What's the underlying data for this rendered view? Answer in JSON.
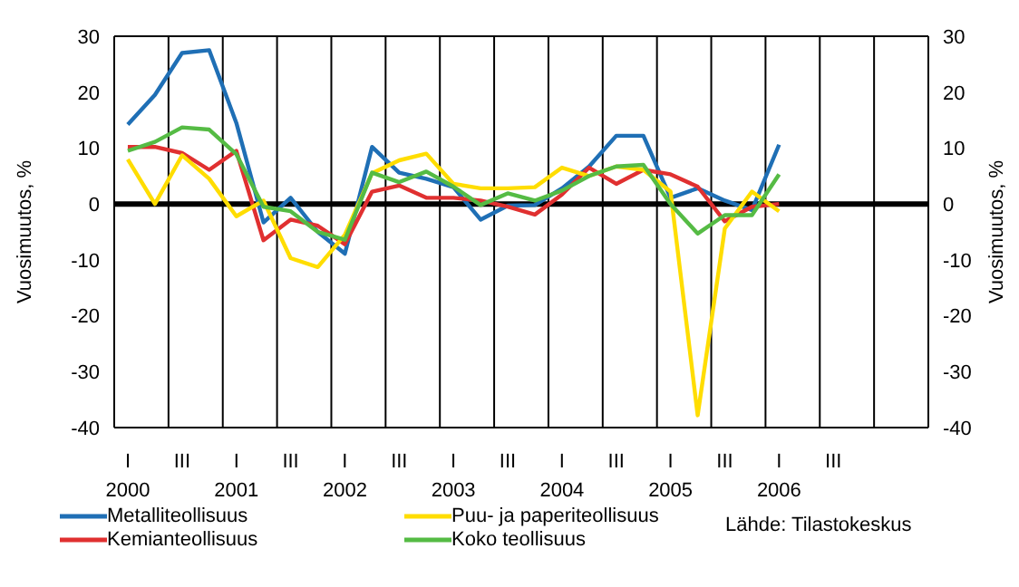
{
  "chart_data": {
    "type": "line",
    "categories": [
      "I\n2000",
      null,
      "III",
      null,
      "I\n2001",
      null,
      "III",
      null,
      "I\n2002",
      null,
      "III",
      null,
      "I\n2003",
      null,
      "III",
      null,
      "I\n2004",
      null,
      "III",
      null,
      "I\n2005",
      null,
      "III",
      null,
      "I\n2006",
      null,
      "III",
      null,
      null,
      null
    ],
    "series": [
      {
        "name": "Metalliteollisuus",
        "color": "#1f6fb5",
        "values": [
          14.2,
          19.5,
          27,
          27.5,
          14.5,
          -3.3,
          1.1,
          -5,
          -8.9,
          10.2,
          5.6,
          4.5,
          3,
          -2.8,
          -0.3,
          -0.2,
          2.8,
          6.7,
          12.2,
          12.2,
          1.1,
          2.8,
          0.6,
          -1.1,
          10.6,
          null,
          null,
          null,
          null,
          null
        ]
      },
      {
        "name": "Kemianteollisuus",
        "color": "#e03030",
        "values": [
          10.2,
          10.2,
          9.1,
          6.1,
          9.5,
          -6.5,
          -2.8,
          -3.9,
          -7.2,
          2.2,
          3.3,
          1.1,
          1.1,
          0.6,
          -0.5,
          -1.9,
          1.7,
          6.5,
          3.6,
          6.1,
          5.3,
          3.1,
          -3.1,
          -0.5,
          0,
          null,
          null,
          null,
          null,
          null
        ]
      },
      {
        "name": "Puu- ja paperiteollisuus",
        "color": "#ffdd00",
        "values": [
          8,
          0,
          8.7,
          4.5,
          -2.2,
          0.6,
          -9.7,
          -11.3,
          -5.5,
          5.5,
          7.8,
          9,
          3.6,
          2.8,
          2.8,
          3,
          6.5,
          5,
          6.7,
          6.1,
          2.2,
          -37.8,
          -4.4,
          2.2,
          -1.3,
          null,
          null,
          null,
          null,
          null
        ]
      },
      {
        "name": "Koko teollisuus",
        "color": "#55bb44",
        "values": [
          9.5,
          11.1,
          13.7,
          13.3,
          8.9,
          -0.5,
          -1.3,
          -5,
          -6.4,
          5.6,
          3.9,
          5.8,
          3.1,
          -0.2,
          1.9,
          0.6,
          2.4,
          5,
          6.7,
          7,
          0,
          -5.3,
          -2,
          -2,
          5.3,
          null,
          null,
          null,
          null,
          null
        ]
      }
    ],
    "ylabel": "Vuosimuutos, %",
    "y2label": "Vuosimuutos, %",
    "ylim": [
      -40,
      30
    ],
    "yticks": [
      -40,
      -30,
      -20,
      -10,
      0,
      10,
      20,
      30
    ],
    "y2lim": [
      -40,
      30
    ],
    "y2ticks": [
      -40,
      -30,
      -20,
      -10,
      0,
      10,
      20,
      30
    ],
    "ref_lines": [
      {
        "axis": "y",
        "value": 0,
        "color": "#000000"
      }
    ],
    "grid": true,
    "legend": "bottom",
    "marker": "none",
    "annotations": [
      "Lähde: Tilastokeskus"
    ]
  }
}
